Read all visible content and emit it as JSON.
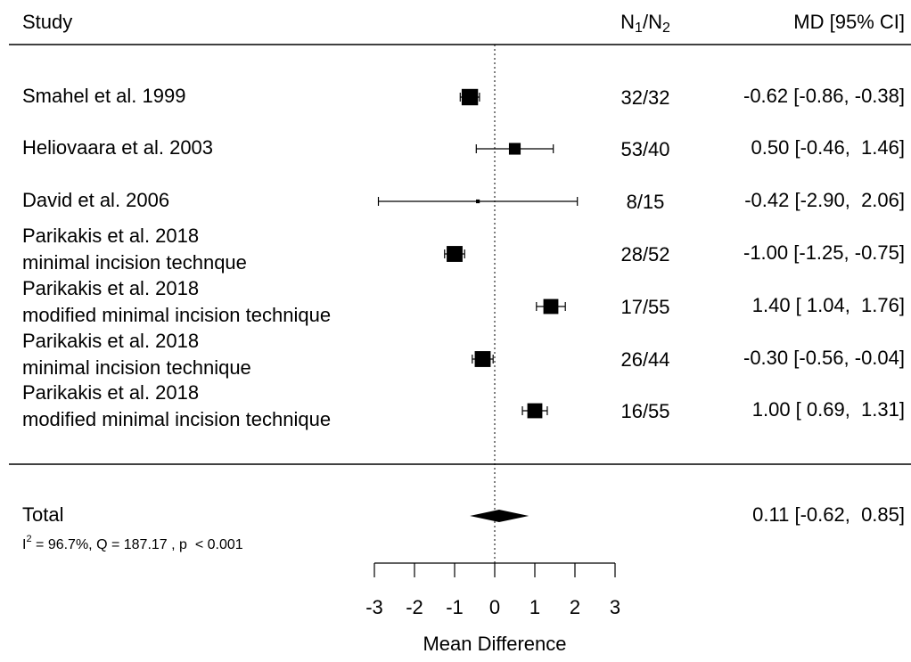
{
  "chart_data": {
    "type": "forest",
    "study_header": "Study",
    "n_header": [
      {
        "text": "N"
      },
      {
        "text": "1",
        "sub": true
      },
      {
        "text": "/"
      },
      {
        "text": "N"
      },
      {
        "text": "2",
        "sub": true
      }
    ],
    "ci_header": "MD [95% CI]",
    "studies": [
      [
        "Smahel et al. 1999"
      ],
      [
        "Heliovaara et al. 2003"
      ],
      [
        "David et al. 2006"
      ],
      [
        "Parikakis et al. 2018",
        "minimal incision technque"
      ],
      [
        "Parikakis et al. 2018",
        "modified minimal incision technique"
      ],
      [
        "Parikakis et al. 2018",
        "minimal incision technique"
      ],
      [
        "Parikakis et al. 2018",
        "modified minimal incision technique"
      ]
    ],
    "n": [
      "32/32",
      "53/40",
      "8/15",
      "28/52",
      "17/55",
      "26/44",
      "16/55"
    ],
    "values": [
      -0.62,
      0.5,
      -0.42,
      -1.0,
      1.4,
      -0.3,
      1.0
    ],
    "lower": [
      -0.86,
      -0.46,
      -2.9,
      -1.25,
      1.04,
      -0.56,
      0.69
    ],
    "upper": [
      -0.38,
      1.46,
      2.06,
      -0.75,
      1.76,
      -0.04,
      1.31
    ],
    "weights": [
      17.5,
      12.5,
      4,
      17,
      16,
      17,
      16
    ],
    "value_labels": [
      "-0.62 [-0.86, -0.38]",
      "0.50 [-0.46,  1.46]",
      "-0.42 [-2.90,  2.06]",
      "-1.00 [-1.25, -0.75]",
      "1.40 [ 1.04,  1.76]",
      "-0.30 [-0.56, -0.04]",
      "1.00 [ 0.69,  1.31]"
    ],
    "total": {
      "label": "Total",
      "value": 0.11,
      "lower": -0.62,
      "upper": 0.85,
      "value_label": "0.11 [-0.62,  0.85]"
    },
    "heterogeneity": [
      {
        "text": "I"
      },
      {
        "text": "2",
        "sup": true
      },
      {
        "text": " = 96.7%, Q = 187.17 , p  < 0.001"
      }
    ],
    "refline": 0,
    "xlabel": "Mean Difference",
    "xlim": [
      -3,
      3
    ],
    "xticks": [
      -3,
      -2,
      -1,
      0,
      1,
      2,
      3
    ],
    "color": "#000000"
  }
}
